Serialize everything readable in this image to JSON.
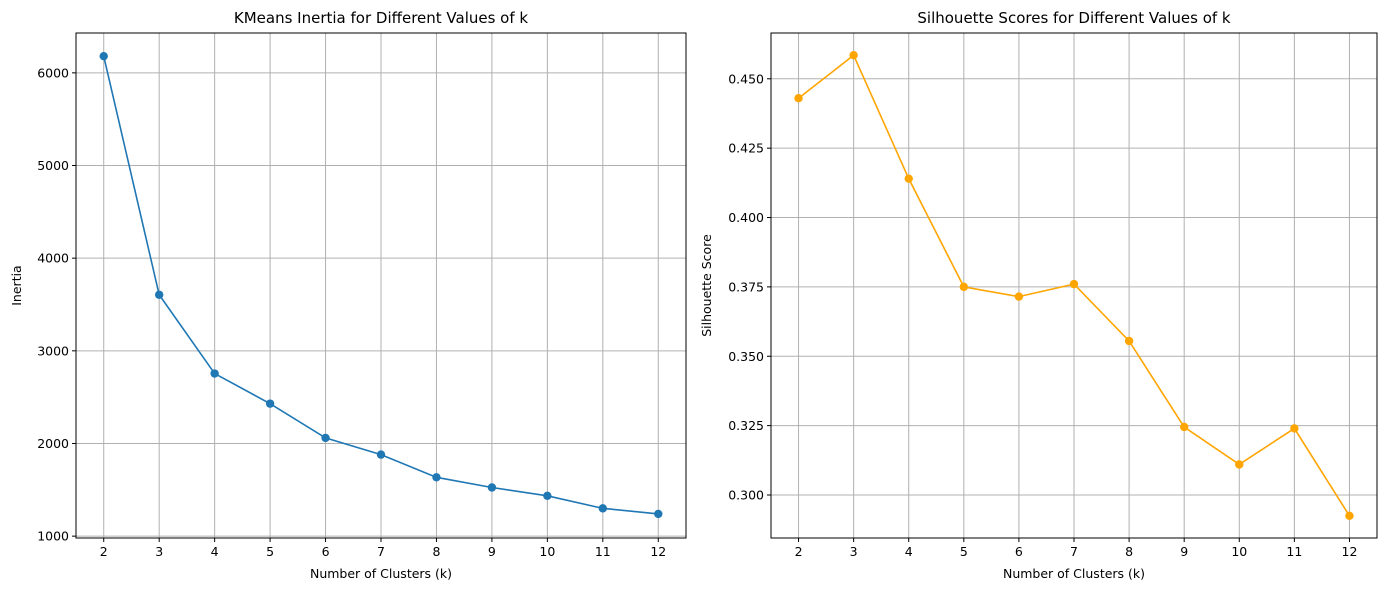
{
  "chart_data": [
    {
      "type": "line",
      "title": "KMeans Inertia for Different Values of k",
      "xlabel": "Number of Clusters (k)",
      "ylabel": "Inertia",
      "x": [
        2,
        3,
        4,
        5,
        6,
        7,
        8,
        9,
        10,
        11,
        12
      ],
      "series": [
        {
          "values": [
            6180,
            3605,
            2755,
            2430,
            2060,
            1880,
            1635,
            1525,
            1435,
            1300,
            1240
          ],
          "color": "#1f77b4"
        }
      ],
      "xticks": [
        "2",
        "3",
        "4",
        "5",
        "6",
        "7",
        "8",
        "9",
        "10",
        "11",
        "12"
      ],
      "yticks": [
        1000,
        2000,
        3000,
        4000,
        5000,
        6000
      ],
      "ytick_labels": [
        "1000",
        "2000",
        "3000",
        "4000",
        "5000",
        "6000"
      ],
      "xlim": [
        1.5,
        12.5
      ],
      "ylim": [
        980,
        6430
      ],
      "grid": true,
      "marker": "circle"
    },
    {
      "type": "line",
      "title": "Silhouette Scores for Different Values of k",
      "xlabel": "Number of Clusters (k)",
      "ylabel": "Silhouette Score",
      "x": [
        2,
        3,
        4,
        5,
        6,
        7,
        8,
        9,
        10,
        11,
        12
      ],
      "series": [
        {
          "values": [
            0.443,
            0.4585,
            0.414,
            0.375,
            0.3715,
            0.376,
            0.3555,
            0.3245,
            0.311,
            0.324,
            0.2925
          ],
          "color": "#ffa500"
        }
      ],
      "xticks": [
        "2",
        "3",
        "4",
        "5",
        "6",
        "7",
        "8",
        "9",
        "10",
        "11",
        "12"
      ],
      "yticks": [
        0.3,
        0.325,
        0.35,
        0.375,
        0.4,
        0.425,
        0.45
      ],
      "ytick_labels": [
        "0.300",
        "0.325",
        "0.350",
        "0.375",
        "0.400",
        "0.425",
        "0.450"
      ],
      "xlim": [
        1.5,
        12.5
      ],
      "ylim": [
        0.2845,
        0.4665
      ],
      "grid": true,
      "marker": "circle"
    }
  ]
}
